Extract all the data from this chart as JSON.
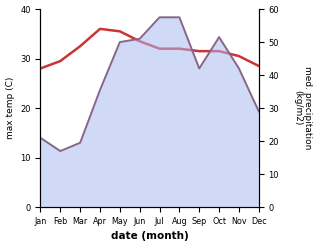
{
  "months": [
    "Jan",
    "Feb",
    "Mar",
    "Apr",
    "May",
    "Jun",
    "Jul",
    "Aug",
    "Sep",
    "Oct",
    "Nov",
    "Dec"
  ],
  "max_temp": [
    28.0,
    29.5,
    32.5,
    36.0,
    35.5,
    33.5,
    32.0,
    32.0,
    31.5,
    31.5,
    30.5,
    28.5
  ],
  "med_precip": [
    21.0,
    17.0,
    19.5,
    35.5,
    50.0,
    51.0,
    57.5,
    57.5,
    42.0,
    51.5,
    42.0,
    29.0
  ],
  "temp_ylim": [
    0,
    40
  ],
  "precip_ylim": [
    0,
    60
  ],
  "temp_color": "#cc3333",
  "precip_fill_color": "#aabbee",
  "precip_line_color": "#886688",
  "xlabel": "date (month)",
  "ylabel_left": "max temp (C)",
  "ylabel_right": "med. precipitation\n(kg/m2)",
  "fig_width": 3.18,
  "fig_height": 2.47,
  "dpi": 100,
  "bg_color": "#f5f5f5"
}
